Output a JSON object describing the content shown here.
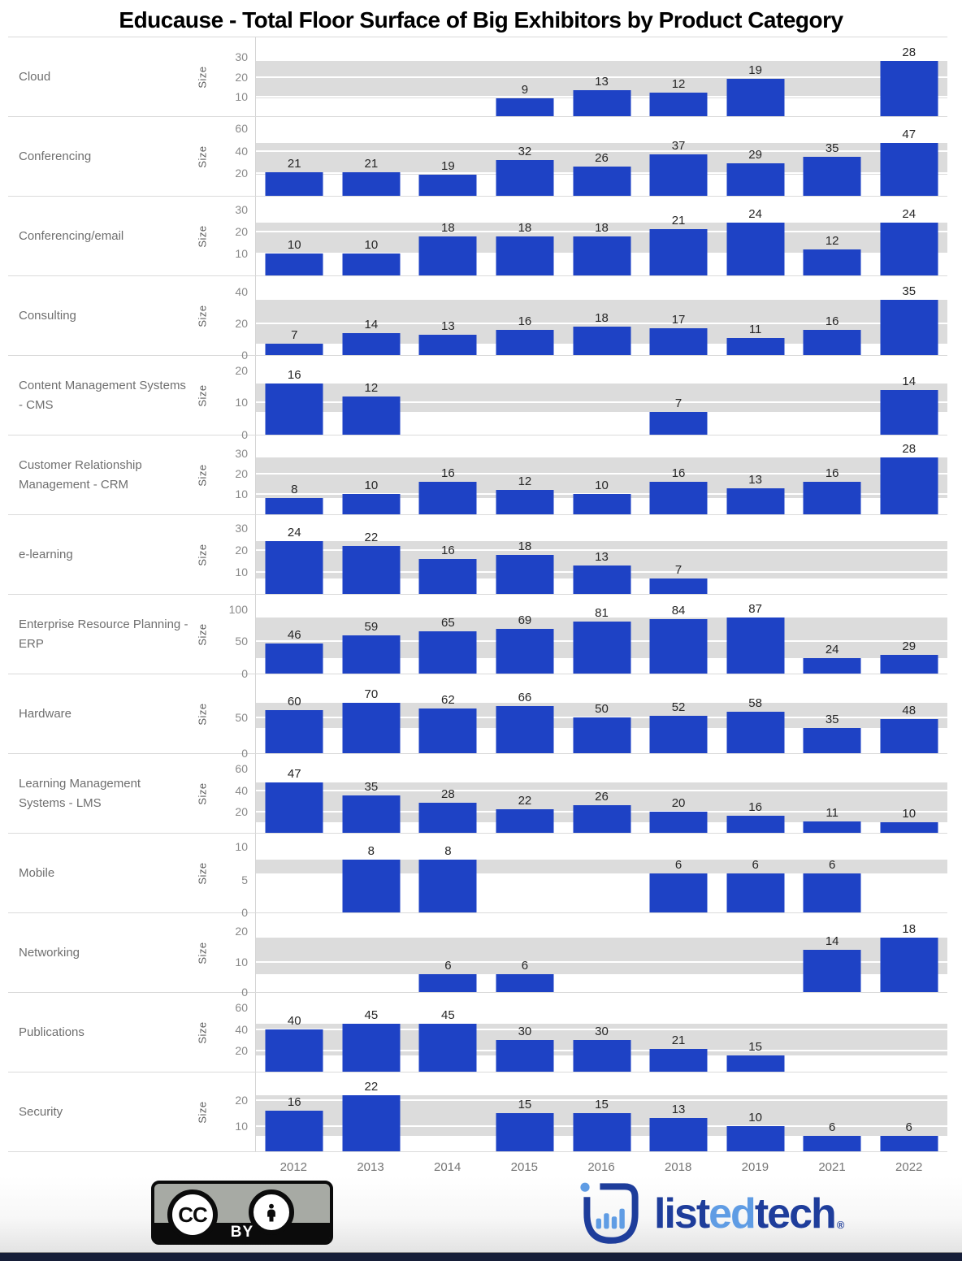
{
  "title": "Educause - Total Floor Surface of Big Exhibitors by Product Category",
  "chart_data": {
    "type": "bar",
    "layout": "small-multiples-rows",
    "x": [
      "2012",
      "2013",
      "2014",
      "2015",
      "2016",
      "2018",
      "2019",
      "2021",
      "2022"
    ],
    "ylabel_per_row": "Size",
    "bar_color": "#1E42C5",
    "band_color": "#dcdcdc",
    "band_note": "gray reference band spans min to max value of each row",
    "grid": true,
    "rows": [
      {
        "category": "Cloud",
        "ticks": [
          10,
          20,
          30
        ],
        "ymax": 40,
        "values": [
          null,
          null,
          null,
          9,
          13,
          12,
          19,
          null,
          28
        ]
      },
      {
        "category": "Conferencing",
        "ticks": [
          20,
          40,
          60
        ],
        "ymax": 70,
        "values": [
          21,
          21,
          19,
          32,
          26,
          37,
          29,
          35,
          47
        ]
      },
      {
        "category": "Conferencing/email",
        "ticks": [
          10,
          20,
          30
        ],
        "ymax": 36,
        "values": [
          10,
          10,
          18,
          18,
          18,
          21,
          24,
          12,
          24
        ]
      },
      {
        "category": "Consulting",
        "ticks": [
          0,
          20,
          40
        ],
        "ymax": 50,
        "values": [
          7,
          14,
          13,
          16,
          18,
          17,
          11,
          16,
          35
        ]
      },
      {
        "category": "Content Management Systems - CMS",
        "ticks": [
          0,
          10,
          20
        ],
        "ymax": 24.5,
        "values": [
          16,
          12,
          null,
          null,
          null,
          7,
          null,
          null,
          14
        ]
      },
      {
        "category": "Customer Relationship Management - CRM",
        "ticks": [
          10,
          20,
          30
        ],
        "ymax": 39,
        "values": [
          8,
          10,
          16,
          12,
          10,
          16,
          13,
          16,
          28
        ]
      },
      {
        "category": "e-learning",
        "ticks": [
          10,
          20,
          30
        ],
        "ymax": 36,
        "values": [
          24,
          22,
          16,
          18,
          13,
          7,
          null,
          null,
          null
        ]
      },
      {
        "category": "Enterprise Resource Planning - ERP",
        "ticks": [
          0,
          50,
          100
        ],
        "ymax": 122,
        "values": [
          46,
          59,
          65,
          69,
          81,
          84,
          87,
          24,
          29
        ]
      },
      {
        "category": "Hardware",
        "ticks": [
          0,
          50
        ],
        "ymax": 110,
        "values": [
          60,
          70,
          62,
          66,
          50,
          52,
          58,
          35,
          48
        ]
      },
      {
        "category": "Learning Management Systems - LMS",
        "ticks": [
          20,
          40,
          60
        ],
        "ymax": 74,
        "values": [
          47,
          35,
          28,
          22,
          26,
          20,
          16,
          11,
          10
        ]
      },
      {
        "category": "Mobile",
        "ticks": [
          0,
          5,
          10
        ],
        "ymax": 12,
        "values": [
          null,
          8,
          8,
          null,
          null,
          6,
          6,
          6,
          null
        ]
      },
      {
        "category": "Networking",
        "ticks": [
          0,
          10,
          20
        ],
        "ymax": 26,
        "values": [
          null,
          null,
          6,
          6,
          null,
          null,
          null,
          14,
          18
        ]
      },
      {
        "category": "Publications",
        "ticks": [
          20,
          40,
          60
        ],
        "ymax": 74,
        "values": [
          40,
          45,
          45,
          30,
          30,
          21,
          15,
          null,
          null
        ]
      },
      {
        "category": "Security",
        "ticks": [
          10,
          20
        ],
        "ymax": 31,
        "values": [
          16,
          22,
          null,
          15,
          15,
          13,
          10,
          6,
          6
        ]
      }
    ]
  },
  "footer": {
    "cc_badge": {
      "cc_text": "CC",
      "label": "BY"
    },
    "logo": {
      "segments": [
        {
          "text": "list",
          "color": "#1e3d9b"
        },
        {
          "text": "ed",
          "color": "#5f9ce4"
        },
        {
          "text": "tech",
          "color": "#1e3d9b"
        }
      ],
      "mark": "®",
      "mark_color": "#1e3d9b",
      "icon_dark": "#1e3d9b",
      "icon_light": "#5f9ce4"
    }
  }
}
